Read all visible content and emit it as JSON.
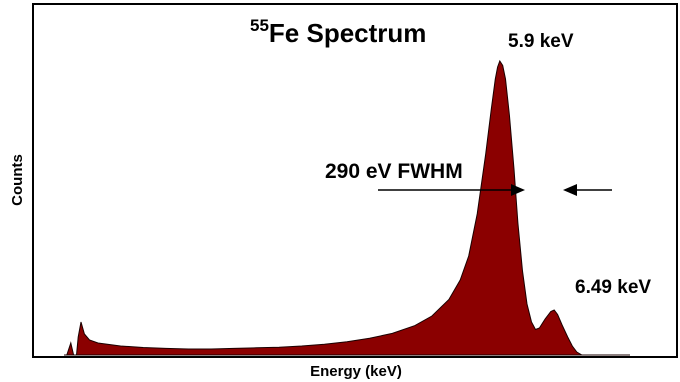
{
  "chart_data": {
    "type": "area",
    "title_main": "Fe Spectrum",
    "title_superscript": "55",
    "xlabel": "Energy (keV)",
    "ylabel": "Counts",
    "grid": false,
    "legend": "none",
    "fill_color": "#8b0000",
    "annotations": [
      {
        "id": "peak-main",
        "text": "5.9 keV"
      },
      {
        "id": "peak-secondary",
        "text": "6.49 keV"
      },
      {
        "id": "fwhm",
        "text": "290 eV FWHM"
      }
    ],
    "spectrum": {
      "x_range": [
        0,
        1
      ],
      "y_range": [
        0,
        1
      ],
      "points": [
        [
          0.0,
          0.0
        ],
        [
          0.005,
          0.0
        ],
        [
          0.012,
          0.04
        ],
        [
          0.017,
          0.0
        ],
        [
          0.022,
          0.0
        ],
        [
          0.025,
          0.06
        ],
        [
          0.03,
          0.11
        ],
        [
          0.036,
          0.07
        ],
        [
          0.045,
          0.05
        ],
        [
          0.06,
          0.04
        ],
        [
          0.08,
          0.035
        ],
        [
          0.1,
          0.03
        ],
        [
          0.14,
          0.025
        ],
        [
          0.18,
          0.022
        ],
        [
          0.22,
          0.02
        ],
        [
          0.26,
          0.02
        ],
        [
          0.3,
          0.022
        ],
        [
          0.34,
          0.024
        ],
        [
          0.38,
          0.026
        ],
        [
          0.42,
          0.03
        ],
        [
          0.46,
          0.036
        ],
        [
          0.5,
          0.044
        ],
        [
          0.54,
          0.056
        ],
        [
          0.58,
          0.072
        ],
        [
          0.62,
          0.098
        ],
        [
          0.65,
          0.13
        ],
        [
          0.68,
          0.185
        ],
        [
          0.7,
          0.25
        ],
        [
          0.715,
          0.33
        ],
        [
          0.73,
          0.47
        ],
        [
          0.745,
          0.67
        ],
        [
          0.755,
          0.82
        ],
        [
          0.762,
          0.92
        ],
        [
          0.766,
          0.96
        ],
        [
          0.77,
          0.98
        ],
        [
          0.775,
          0.965
        ],
        [
          0.78,
          0.92
        ],
        [
          0.787,
          0.8
        ],
        [
          0.795,
          0.62
        ],
        [
          0.802,
          0.44
        ],
        [
          0.81,
          0.28
        ],
        [
          0.818,
          0.17
        ],
        [
          0.826,
          0.11
        ],
        [
          0.833,
          0.085
        ],
        [
          0.84,
          0.09
        ],
        [
          0.85,
          0.12
        ],
        [
          0.86,
          0.145
        ],
        [
          0.866,
          0.15
        ],
        [
          0.872,
          0.135
        ],
        [
          0.88,
          0.1
        ],
        [
          0.89,
          0.06
        ],
        [
          0.898,
          0.03
        ],
        [
          0.906,
          0.01
        ],
        [
          0.915,
          0.0
        ],
        [
          1.0,
          0.0
        ]
      ]
    }
  }
}
